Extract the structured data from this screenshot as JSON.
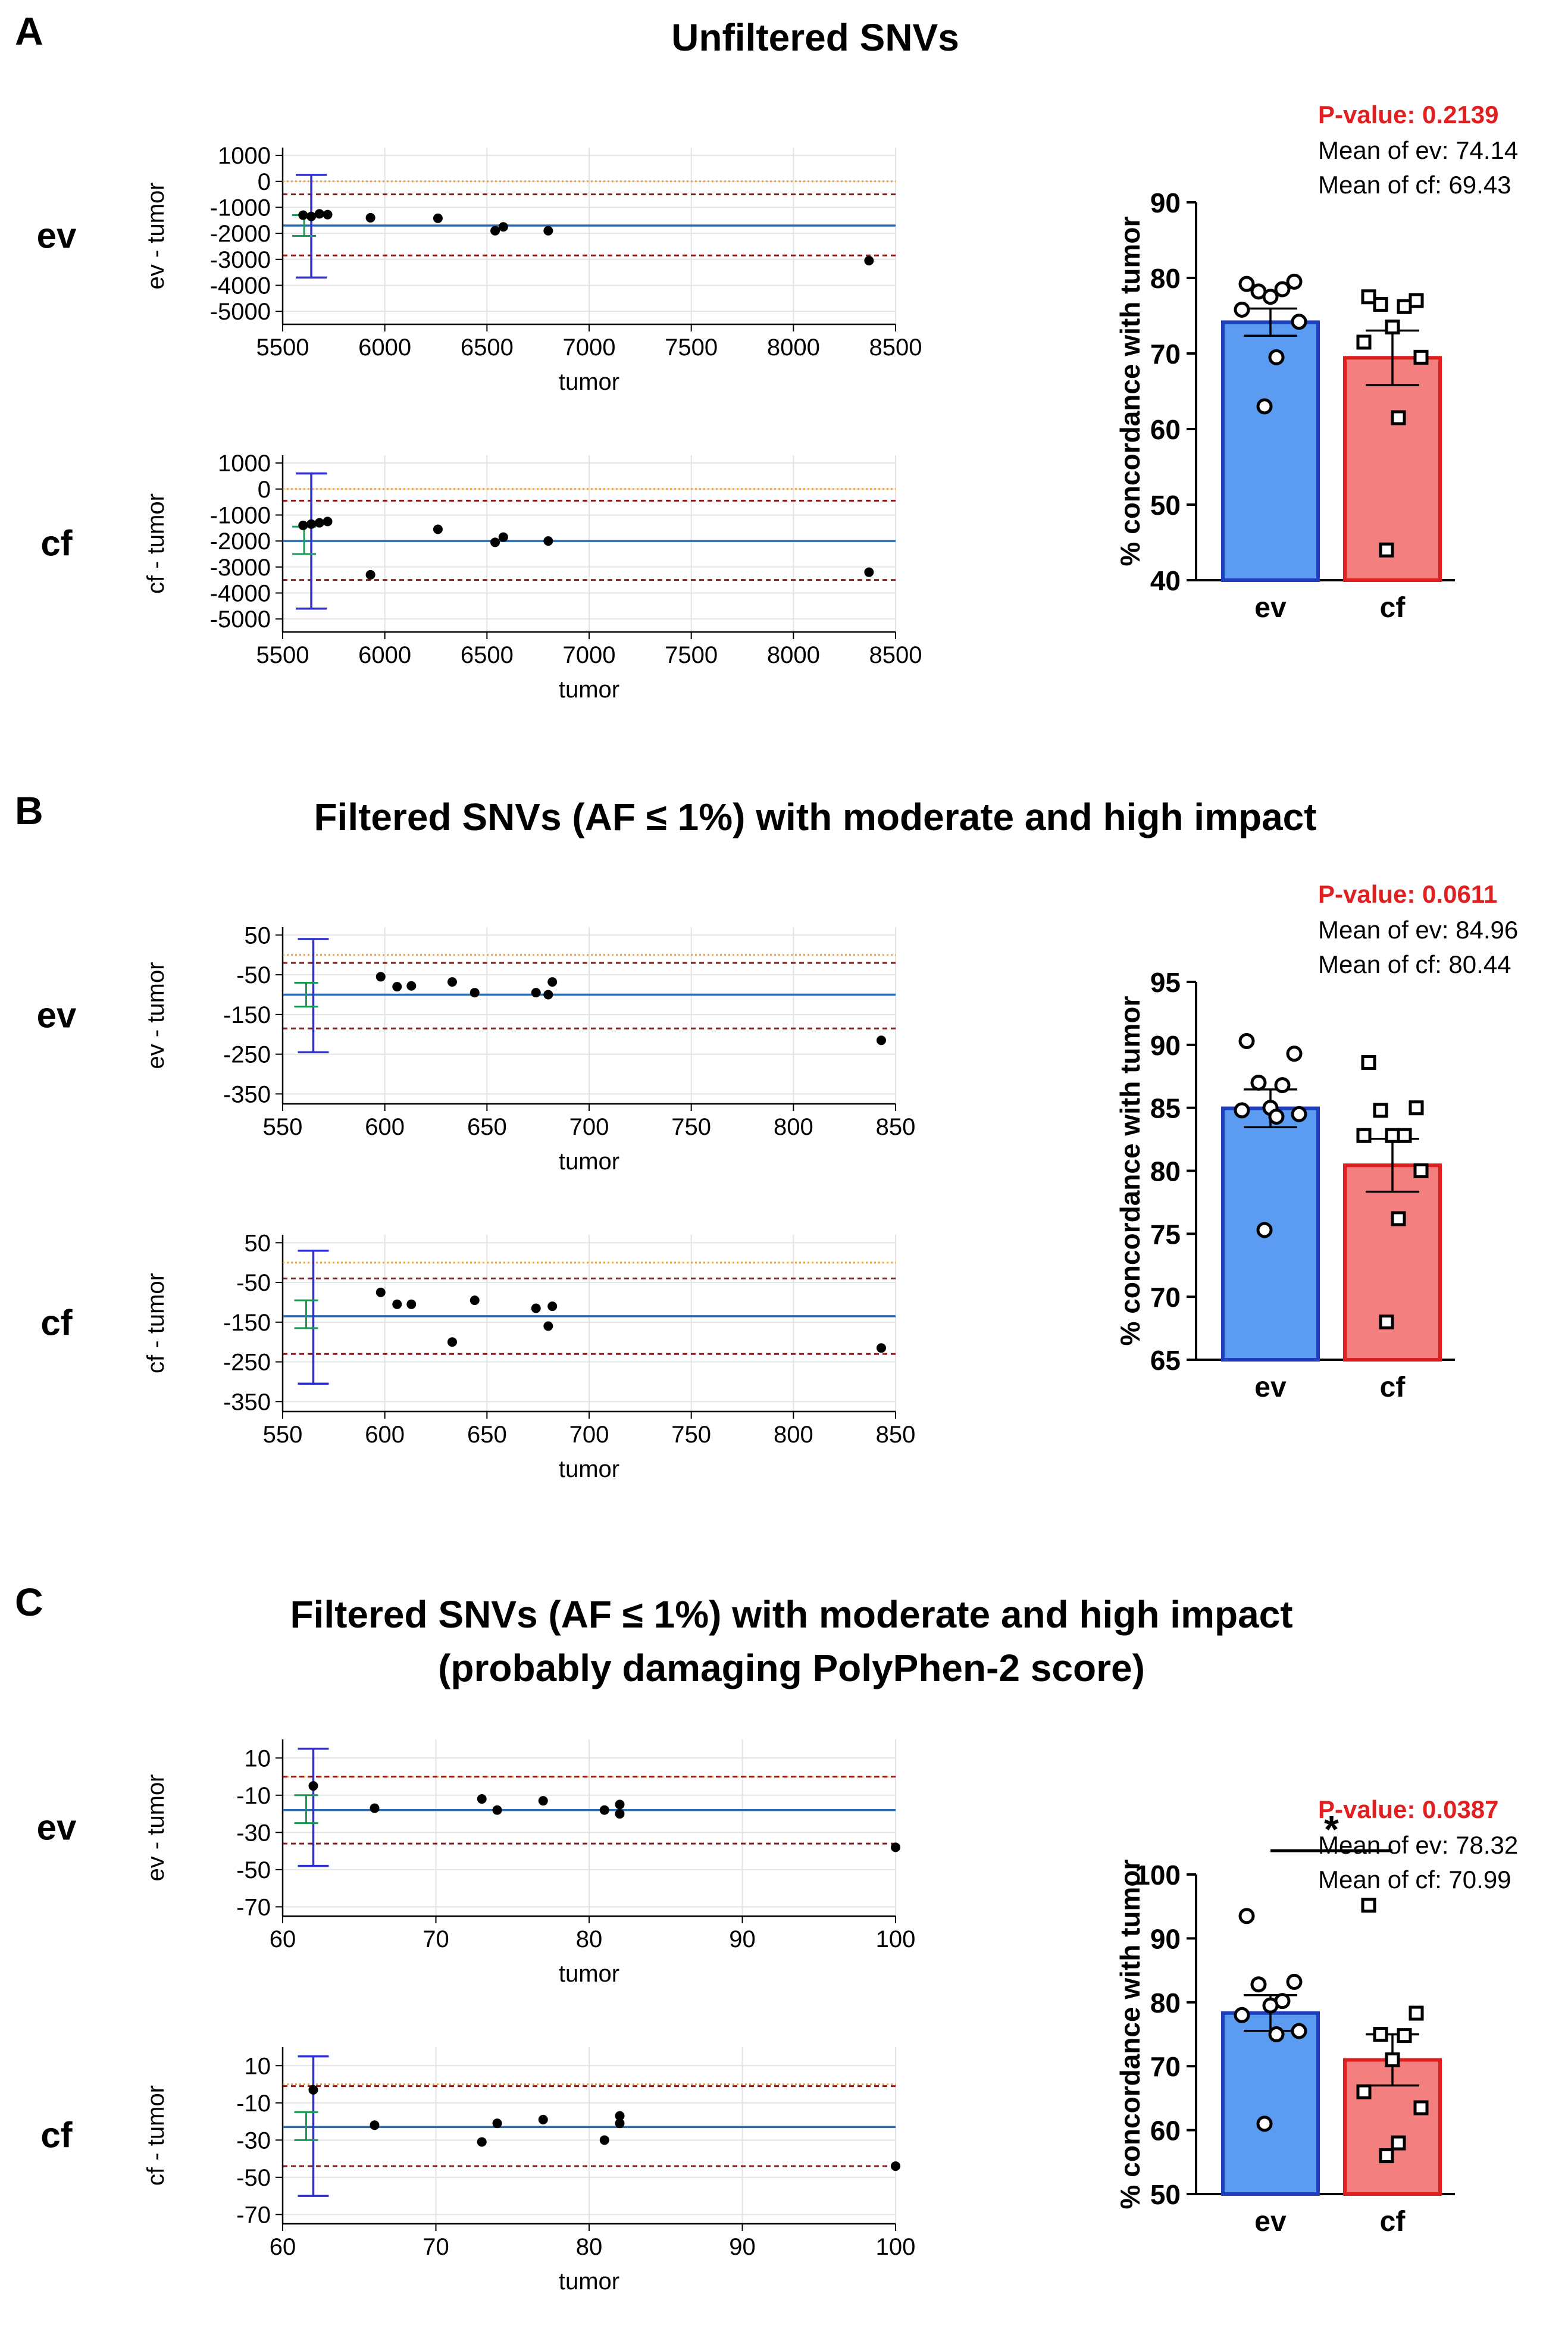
{
  "colors": {
    "grid": "#e4e4e4",
    "mean_line": "#2b6cb0",
    "loa_line": "#8b1a1a",
    "zero_line": "#e8a33d",
    "ci_line": "#2f2fd0",
    "ci_green": "#1a9a55",
    "bar_ev_fill": "#5b9cf2",
    "bar_ev_edge": "#1f3fbf",
    "bar_cf_fill": "#f37f7f",
    "bar_cf_edge": "#e02020",
    "pvalue": "#e02020",
    "point": "#000000"
  },
  "panels": [
    {
      "letter": "A",
      "title": [
        "Unfiltered SNVs"
      ],
      "stats": {
        "pvalue": "P-value: 0.2139",
        "mean_ev": "Mean of ev: 74.14",
        "mean_cf": "Mean of cf: 69.43"
      },
      "significance": "",
      "bland_altman": [
        {
          "row_label": "ev",
          "ylabel": "ev - tumor",
          "xlabel": "tumor",
          "xlim": [
            5500,
            8500
          ],
          "xticks": [
            5500,
            6000,
            6500,
            7000,
            7500,
            8000,
            8500
          ],
          "ylim": [
            -5500,
            1300
          ],
          "yticks": [
            1000,
            0,
            -1000,
            -2000,
            -3000,
            -4000,
            -5000
          ],
          "tick_labels_y": [
            "1000",
            "0",
            "-1000",
            "-2000",
            "-3000",
            "-4000",
            "-5000"
          ],
          "tick_labels_x": [
            "5500",
            "6000",
            "6500",
            "7000",
            "7500",
            "8000",
            "8500"
          ],
          "mean": -1700,
          "loa_upper": -500,
          "loa_lower": -2850,
          "ci_x": 5640,
          "ci_upper": 250,
          "ci_lower": -3700,
          "mean_ci": [
            -2100,
            -1300
          ],
          "points": [
            [
              5600,
              -1300
            ],
            [
              5640,
              -1350
            ],
            [
              5680,
              -1250
            ],
            [
              5720,
              -1280
            ],
            [
              5930,
              -1400
            ],
            [
              6260,
              -1420
            ],
            [
              6540,
              -1900
            ],
            [
              6580,
              -1750
            ],
            [
              6800,
              -1900
            ],
            [
              8370,
              -3050
            ]
          ]
        },
        {
          "row_label": "cf",
          "ylabel": "cf - tumor",
          "xlabel": "tumor",
          "xlim": [
            5500,
            8500
          ],
          "xticks": [
            5500,
            6000,
            6500,
            7000,
            7500,
            8000,
            8500
          ],
          "ylim": [
            -5500,
            1300
          ],
          "yticks": [
            1000,
            0,
            -1000,
            -2000,
            -3000,
            -4000,
            -5000
          ],
          "tick_labels_y": [
            "1000",
            "0",
            "-1000",
            "-2000",
            "-3000",
            "-4000",
            "-5000"
          ],
          "tick_labels_x": [
            "5500",
            "6000",
            "6500",
            "7000",
            "7500",
            "8000",
            "8500"
          ],
          "mean": -2000,
          "loa_upper": -450,
          "loa_lower": -3500,
          "ci_x": 5640,
          "ci_upper": 600,
          "ci_lower": -4600,
          "mean_ci": [
            -2500,
            -1450
          ],
          "points": [
            [
              5600,
              -1400
            ],
            [
              5640,
              -1350
            ],
            [
              5680,
              -1300
            ],
            [
              5720,
              -1250
            ],
            [
              5930,
              -3300
            ],
            [
              6260,
              -1550
            ],
            [
              6540,
              -2050
            ],
            [
              6580,
              -1850
            ],
            [
              6800,
              -2000
            ],
            [
              8370,
              -3200
            ]
          ]
        }
      ],
      "bar": {
        "type": "bar",
        "ylabel": "% concordance with tumor",
        "ylim": [
          40,
          90
        ],
        "yticks": [
          40,
          50,
          60,
          70,
          80,
          90
        ],
        "tick_labels_y": [
          "40",
          "50",
          "60",
          "70",
          "80",
          "90"
        ],
        "categories": [
          "ev",
          "cf"
        ],
        "values": [
          74.14,
          69.43
        ],
        "sem": [
          1.8,
          3.6
        ],
        "ev_points": [
          79.2,
          79.5,
          78.2,
          78.5,
          77.5,
          75.8,
          74.2,
          69.5,
          63.0
        ],
        "cf_points": [
          77.5,
          77.0,
          76.5,
          76.2,
          73.5,
          71.5,
          69.5,
          61.5,
          44.0
        ]
      }
    },
    {
      "letter": "B",
      "title": [
        "Filtered SNVs (AF ≤ 1%) with moderate and high impact"
      ],
      "stats": {
        "pvalue": "P-value: 0.0611",
        "mean_ev": "Mean of ev: 84.96",
        "mean_cf": "Mean of cf: 80.44"
      },
      "significance": "",
      "bland_altman": [
        {
          "row_label": "ev",
          "ylabel": "ev - tumor",
          "xlabel": "tumor",
          "xlim": [
            550,
            850
          ],
          "xticks": [
            550,
            600,
            650,
            700,
            750,
            800,
            850
          ],
          "ylim": [
            -375,
            70
          ],
          "yticks": [
            50,
            -50,
            -150,
            -250,
            -350
          ],
          "tick_labels_y": [
            "50",
            "-50",
            "-150",
            "-250",
            "-350"
          ],
          "tick_labels_x": [
            "550",
            "600",
            "650",
            "700",
            "750",
            "800",
            "850"
          ],
          "zero": 0,
          "mean": -100,
          "loa_upper": -20,
          "loa_lower": -185,
          "ci_x": 565,
          "ci_upper": 40,
          "ci_lower": -245,
          "mean_ci": [
            -130,
            -70
          ],
          "points": [
            [
              598,
              -55
            ],
            [
              606,
              -80
            ],
            [
              613,
              -78
            ],
            [
              633,
              -68
            ],
            [
              644,
              -95
            ],
            [
              674,
              -95
            ],
            [
              680,
              -100
            ],
            [
              682,
              -68
            ],
            [
              843,
              -215
            ]
          ]
        },
        {
          "row_label": "cf",
          "ylabel": "cf - tumor",
          "xlabel": "tumor",
          "xlim": [
            550,
            850
          ],
          "xticks": [
            550,
            600,
            650,
            700,
            750,
            800,
            850
          ],
          "ylim": [
            -375,
            70
          ],
          "yticks": [
            50,
            -50,
            -150,
            -250,
            -350
          ],
          "tick_labels_y": [
            "50",
            "-50",
            "-150",
            "-250",
            "-350"
          ],
          "tick_labels_x": [
            "550",
            "600",
            "650",
            "700",
            "750",
            "800",
            "850"
          ],
          "zero": 0,
          "mean": -135,
          "loa_upper": -40,
          "loa_lower": -230,
          "ci_x": 565,
          "ci_upper": 30,
          "ci_lower": -305,
          "mean_ci": [
            -165,
            -95
          ],
          "points": [
            [
              598,
              -75
            ],
            [
              606,
              -105
            ],
            [
              613,
              -105
            ],
            [
              633,
              -200
            ],
            [
              644,
              -95
            ],
            [
              674,
              -115
            ],
            [
              680,
              -160
            ],
            [
              682,
              -110
            ],
            [
              843,
              -215
            ]
          ]
        }
      ],
      "bar": {
        "type": "bar",
        "ylabel": "% concordance with tumor",
        "ylim": [
          65,
          95
        ],
        "yticks": [
          65,
          70,
          75,
          80,
          85,
          90,
          95
        ],
        "tick_labels_y": [
          "65",
          "70",
          "75",
          "80",
          "85",
          "90",
          "95"
        ],
        "categories": [
          "ev",
          "cf"
        ],
        "values": [
          84.96,
          80.44
        ],
        "sem": [
          1.5,
          2.1
        ],
        "ev_points": [
          90.3,
          89.3,
          87.0,
          86.8,
          85.0,
          84.8,
          84.5,
          84.3,
          75.3
        ],
        "cf_points": [
          88.6,
          85.0,
          84.8,
          82.8,
          82.8,
          82.8,
          80.0,
          76.2,
          68.0
        ]
      }
    },
    {
      "letter": "C",
      "title": [
        "Filtered SNVs (AF ≤ 1%) with moderate and high impact",
        "(probably damaging PolyPhen-2 score)"
      ],
      "stats": {
        "pvalue": "P-value: 0.0387",
        "mean_ev": "Mean of ev: 78.32",
        "mean_cf": "Mean of cf: 70.99"
      },
      "significance": "*",
      "bland_altman": [
        {
          "row_label": "ev",
          "ylabel": "ev - tumor",
          "xlabel": "tumor",
          "xlim": [
            60,
            100
          ],
          "xticks": [
            60,
            70,
            80,
            90,
            100
          ],
          "ylim": [
            -75,
            20
          ],
          "yticks": [
            10,
            -10,
            -30,
            -50,
            -70
          ],
          "tick_labels_y": [
            "10",
            "-10",
            "-30",
            "-50",
            "-70"
          ],
          "tick_labels_x": [
            "60",
            "70",
            "80",
            "90",
            "100"
          ],
          "zero": 0,
          "mean": -18,
          "loa_upper": 0,
          "loa_lower": -36,
          "ci_x": 62,
          "ci_upper": 15,
          "ci_lower": -48,
          "mean_ci": [
            -25,
            -10
          ],
          "points": [
            [
              62,
              -5
            ],
            [
              66,
              -17
            ],
            [
              73,
              -12
            ],
            [
              74,
              -18
            ],
            [
              77,
              -13
            ],
            [
              81,
              -18
            ],
            [
              82,
              -15
            ],
            [
              82,
              -20
            ],
            [
              100,
              -38
            ]
          ]
        },
        {
          "row_label": "cf",
          "ylabel": "cf - tumor",
          "xlabel": "tumor",
          "xlim": [
            60,
            100
          ],
          "xticks": [
            60,
            70,
            80,
            90,
            100
          ],
          "ylim": [
            -75,
            20
          ],
          "yticks": [
            10,
            -10,
            -30,
            -50,
            -70
          ],
          "tick_labels_y": [
            "10",
            "-10",
            "-30",
            "-50",
            "-70"
          ],
          "tick_labels_x": [
            "60",
            "70",
            "80",
            "90",
            "100"
          ],
          "zero": 0,
          "mean": -23,
          "loa_upper": -1,
          "loa_lower": -44,
          "ci_x": 62,
          "ci_upper": 15,
          "ci_lower": -60,
          "mean_ci": [
            -30,
            -15
          ],
          "points": [
            [
              62,
              -3
            ],
            [
              66,
              -22
            ],
            [
              73,
              -31
            ],
            [
              74,
              -21
            ],
            [
              77,
              -19
            ],
            [
              81,
              -30
            ],
            [
              82,
              -21
            ],
            [
              82,
              -17
            ],
            [
              100,
              -44
            ]
          ]
        }
      ],
      "bar": {
        "type": "bar",
        "ylabel": "% concordance with tumor",
        "ylim": [
          50,
          100
        ],
        "yticks": [
          50,
          60,
          70,
          80,
          90,
          100
        ],
        "tick_labels_y": [
          "50",
          "60",
          "70",
          "80",
          "90",
          "100"
        ],
        "categories": [
          "ev",
          "cf"
        ],
        "values": [
          78.32,
          70.99
        ],
        "sem": [
          2.8,
          4.0
        ],
        "ev_points": [
          93.5,
          83.2,
          82.8,
          80.2,
          79.5,
          78.0,
          75.5,
          75.0,
          61.0
        ],
        "cf_points": [
          95.2,
          78.3,
          75.0,
          74.8,
          71.0,
          66.0,
          63.5,
          58.0,
          56.0
        ]
      }
    }
  ]
}
